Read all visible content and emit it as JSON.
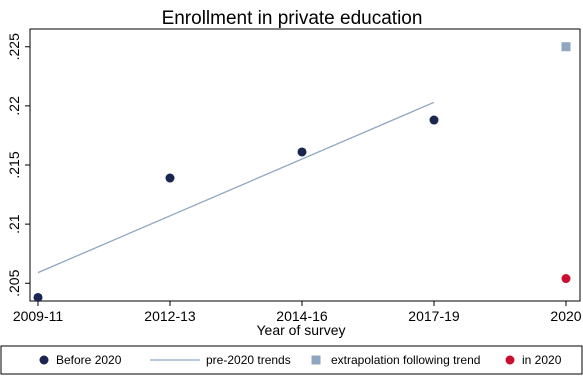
{
  "chart_data": {
    "type": "scatter",
    "title": "Enrollment in private education",
    "xlabel": "Year of survey",
    "ylabel": "",
    "categories": [
      "2009-11",
      "2012-13",
      "2014-16",
      "2017-19",
      "2020"
    ],
    "yticks": [
      ".205",
      ".21",
      ".215",
      ".22",
      ".225"
    ],
    "ylim": [
      0.2035,
      0.2265
    ],
    "grid": false,
    "legend_position": "bottom",
    "series": [
      {
        "name": "Before 2020",
        "kind": "points",
        "marker": "circle",
        "color": "#1a2550",
        "points": [
          {
            "x": "2009-11",
            "y": 0.2038
          },
          {
            "x": "2012-13",
            "y": 0.2139
          },
          {
            "x": "2014-16",
            "y": 0.2161
          },
          {
            "x": "2017-19",
            "y": 0.2188
          }
        ]
      },
      {
        "name": "pre-2020 trends",
        "kind": "line",
        "color": "#8fa6c0",
        "points": [
          {
            "x": "2009-11",
            "y": 0.2059
          },
          {
            "x": "2017-19",
            "y": 0.2203
          }
        ]
      },
      {
        "name": "extrapolation following trend",
        "kind": "points",
        "marker": "square",
        "color": "#8fa6c0",
        "points": [
          {
            "x": "2020",
            "y": 0.225
          }
        ]
      },
      {
        "name": "in 2020",
        "kind": "points",
        "marker": "circle",
        "color": "#c8102e",
        "points": [
          {
            "x": "2020",
            "y": 0.2054
          }
        ]
      }
    ]
  }
}
